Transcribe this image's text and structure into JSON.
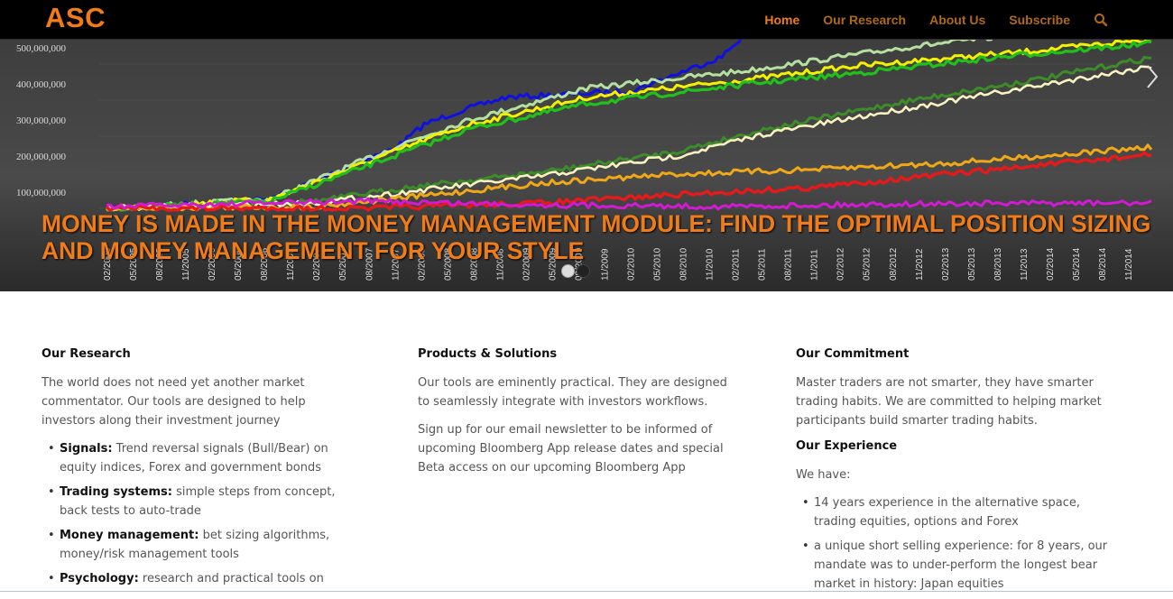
{
  "nav": {
    "logo": "ASC",
    "items": [
      {
        "label": "Home",
        "active": true
      },
      {
        "label": "Our Research",
        "active": false
      },
      {
        "label": "About Us",
        "active": false
      },
      {
        "label": "Subscribe",
        "active": false
      }
    ],
    "search_icon": "search-icon"
  },
  "hero": {
    "caption": "MONEY IS MADE IN THE MONEY MANAGEMENT MODULE: FIND THE OPTIMAL POSITION SIZING AND MONEY MANAGEMENT FOR YOUR STYLE",
    "slide_count": 2,
    "active_slide": 1,
    "next_icon": "chevron-right-icon",
    "chart": {
      "y_ticks": [
        "100,000,000",
        "200,000,000",
        "300,000,000",
        "400,000,000",
        "500,000,000"
      ],
      "x_ticks": [
        "02/2005",
        "05/2005",
        "08/2005",
        "11/2005",
        "02/2006",
        "05/2006",
        "08/2006",
        "11/2006",
        "02/2007",
        "05/2007",
        "08/2007",
        "11/2007",
        "02/2008",
        "05/2008",
        "08/2008",
        "11/2008",
        "02/2009",
        "05/2009",
        "08/2009",
        "11/2009",
        "02/2010",
        "05/2010",
        "08/2010",
        "11/2010",
        "02/2011",
        "05/2011",
        "08/2011",
        "11/2011",
        "02/2012",
        "05/2012",
        "08/2012",
        "11/2012",
        "02/2013",
        "05/2013",
        "08/2013",
        "11/2013",
        "02/2014",
        "05/2014",
        "08/2014",
        "11/2014"
      ],
      "series_colors": [
        "#1010e0",
        "#b5e0a0",
        "#f2f200",
        "#22c01a",
        "#3d8c2a",
        "#f8f2c0",
        "#f0a818",
        "#e61a1a",
        "#d21ad2"
      ]
    }
  },
  "columns": {
    "research": {
      "title": "Our Research",
      "intro": "The world does not need yet another market commentator. Our tools are designed to help investors along their investment journey",
      "items": [
        {
          "term": "Signals:",
          "text": " Trend reversal signals (Bull/Bear) on equity indices, Forex and government bonds"
        },
        {
          "term": "Trading systems:",
          "text": " simple steps from concept, back tests to auto-trade"
        },
        {
          "term": "Money management:",
          "text": " bet sizing algorithms, money/risk management tools"
        },
        {
          "term": "Psychology:",
          "text": " research and practical tools on"
        }
      ]
    },
    "products": {
      "title": "Products & Solutions",
      "p1": "Our tools are eminently practical. They are designed to seamlessly integrate with investors workflows.",
      "p2": "Sign up for our email newsletter to be informed of upcoming Bloomberg App release dates and special Beta access on our upcoming Bloomberg App"
    },
    "commitment": {
      "title": "Our Commitment",
      "p1": "Master traders are not smarter, they have smarter trading habits. We are committed to helping market participants build smarter trading habits.",
      "exp_title": "Our Experience",
      "exp_intro": "We have:",
      "items": [
        "14 years experience in the alternative space, trading equities, options and Forex",
        "a unique short selling experience: for 8 years, our mandate was to under-perform the longest bear market in history: Japan equities"
      ]
    }
  }
}
